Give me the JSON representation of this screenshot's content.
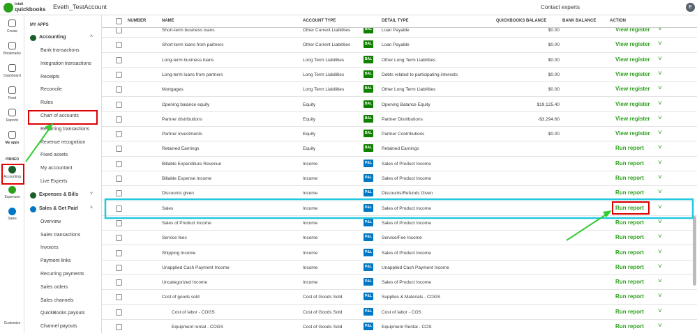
{
  "header": {
    "brand_top": "intuit",
    "brand": "quickbooks",
    "company": "Eveth_TestAccount",
    "contact": "Contact experts",
    "avatar": "E"
  },
  "rail": {
    "items": [
      "Create",
      "Bookmarks",
      "Dashboard",
      "Feed",
      "Reports",
      "My apps"
    ],
    "pinned_title": "PINNED",
    "pinned": [
      "Accounting",
      "Expenses",
      "Sales"
    ],
    "customize": "Customize"
  },
  "menu": {
    "title": "MY APPS",
    "sections": [
      {
        "name": "Accounting",
        "open": true,
        "items": [
          "Bank transactions",
          "Integration transactions",
          "Receipts",
          "Reconcile",
          "Rules",
          "Chart of accounts",
          "Recurring transactions",
          "Revenue recognition",
          "Fixed assets",
          "My accountant",
          "Live Experts"
        ]
      },
      {
        "name": "Expenses & Bills",
        "open": false,
        "items": []
      },
      {
        "name": "Sales & Get Paid",
        "open": true,
        "items": [
          "Overview",
          "Sales transactions",
          "Invoices",
          "Payment links",
          "Recurring payments",
          "Sales orders",
          "Sales channels",
          "QuickBooks payouts",
          "Channel payouts"
        ]
      }
    ]
  },
  "table": {
    "columns": [
      "NUMBER",
      "NAME",
      "ACCOUNT TYPE",
      "DETAIL TYPE",
      "QUICKBOOKS BALANCE",
      "BANK BALANCE",
      "ACTION"
    ],
    "rows": [
      {
        "name": "Short-term business loans",
        "type": "Other Current Liabilities",
        "badge": "BAL",
        "detail": "Loan Payable",
        "balance": "$0.00",
        "action": "View register"
      },
      {
        "name": "Short-term loans from partners",
        "type": "Other Current Liabilities",
        "badge": "BAL",
        "detail": "Loan Payable",
        "balance": "$0.00",
        "action": "View register"
      },
      {
        "name": "Long-term business loans",
        "type": "Long Term Liabilities",
        "badge": "BAL",
        "detail": "Other Long Term Liabilities",
        "balance": "$0.00",
        "action": "View register"
      },
      {
        "name": "Long-term loans from partners",
        "type": "Long Term Liabilities",
        "badge": "BAL",
        "detail": "Debts related to participating interests",
        "balance": "$0.00",
        "action": "View register"
      },
      {
        "name": "Mortgages",
        "type": "Long Term Liabilities",
        "badge": "BAL",
        "detail": "Other Long Term Liabilities",
        "balance": "$0.00",
        "action": "View register"
      },
      {
        "name": "Opening balance equity",
        "type": "Equity",
        "badge": "BAL",
        "detail": "Opening Balance Equity",
        "balance": "$19,125.40",
        "action": "View register"
      },
      {
        "name": "Partner distributions",
        "type": "Equity",
        "badge": "BAL",
        "detail": "Partner Distributions",
        "balance": "-$3,294.60",
        "action": "View register"
      },
      {
        "name": "Partner investments",
        "type": "Equity",
        "badge": "BAL",
        "detail": "Partner Contributions",
        "balance": "$0.00",
        "action": "View register"
      },
      {
        "name": "Retained Earnings",
        "type": "Equity",
        "badge": "BAL",
        "detail": "Retained Earnings",
        "action": "Run report"
      },
      {
        "name": "Billable Expenditure Revenue",
        "type": "Income",
        "badge": "P&L",
        "detail": "Sales of Product Income",
        "action": "Run report"
      },
      {
        "name": "Billable Expense Income",
        "type": "Income",
        "badge": "P&L",
        "detail": "Sales of Product Income",
        "action": "Run report"
      },
      {
        "name": "Discounts given",
        "type": "Income",
        "badge": "P&L",
        "detail": "Discounts/Refunds Given",
        "action": "Run report"
      },
      {
        "name": "Sales",
        "type": "Income",
        "badge": "P&L",
        "detail": "Sales of Product Income",
        "action": "Run report",
        "highlight": true
      },
      {
        "name": "Sales of Product Income",
        "type": "Income",
        "badge": "P&L",
        "detail": "Sales of Product Income",
        "action": "Run report"
      },
      {
        "name": "Service fees",
        "type": "Income",
        "badge": "P&L",
        "detail": "Service/Fee Income",
        "action": "Run report"
      },
      {
        "name": "Shipping Income",
        "type": "Income",
        "badge": "P&L",
        "detail": "Sales of Product Income",
        "action": "Run report"
      },
      {
        "name": "Unapplied Cash Payment Income",
        "type": "Income",
        "badge": "P&L",
        "detail": "Unapplied Cash Payment Income",
        "action": "Run report"
      },
      {
        "name": "Uncategorized Income",
        "type": "Income",
        "badge": "P&L",
        "detail": "Sales of Product Income",
        "action": "Run report"
      },
      {
        "name": "Cost of goods sold",
        "type": "Cost of Goods Sold",
        "badge": "P&L",
        "detail": "Supplies & Materials - COGS",
        "action": "Run report"
      },
      {
        "name": "Cost of labor - COGS",
        "type": "Cost of Goods Sold",
        "badge": "P&L",
        "detail": "Cost of labor - COS",
        "action": "Run report",
        "sub": true
      },
      {
        "name": "Equipment rental - COGS",
        "type": "Cost of Goods Sold",
        "badge": "P&L",
        "detail": "Equipment Rental - COS",
        "action": "Run report",
        "sub": true
      }
    ]
  }
}
